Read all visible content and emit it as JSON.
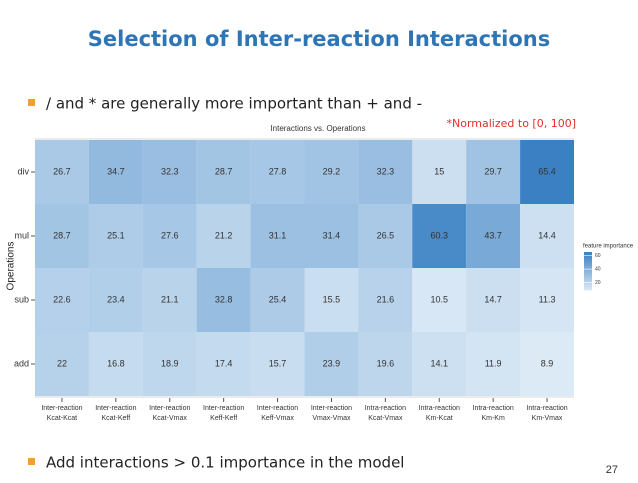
{
  "slide": {
    "title": "Selection of Inter-reaction Interactions",
    "bullets": [
      "/ and *  are generally more important than + and -",
      "Add interactions > 0.1 importance in the model"
    ],
    "note": "*Normalized to [0, 100]",
    "page_number": "27"
  },
  "chart_data": {
    "type": "heatmap",
    "title": "Interactions vs. Operations",
    "y_label": "Operations",
    "rows": [
      "div",
      "mul",
      "sub",
      "add"
    ],
    "categories": [
      [
        "Inter-reaction",
        "Kcat-Kcat"
      ],
      [
        "Inter-reaction",
        "Kcat-Keff"
      ],
      [
        "Inter-reaction",
        "Kcat-Vmax"
      ],
      [
        "Inter-reaction",
        "Keff-Keff"
      ],
      [
        "Inter-reaction",
        "Keff-Vmax"
      ],
      [
        "Inter-reaction",
        "Vmax-Vmax"
      ],
      [
        "Intra-reaction",
        "Kcat-Vmax"
      ],
      [
        "Intra-reaction",
        "Km-Kcat"
      ],
      [
        "Intra-reaction",
        "Km-Km"
      ],
      [
        "Intra-reaction",
        "Km-Vmax"
      ]
    ],
    "values": [
      [
        26.7,
        34.7,
        32.3,
        28.7,
        27.8,
        29.2,
        32.3,
        15,
        29.7,
        65.4
      ],
      [
        28.7,
        25.1,
        27.6,
        21.2,
        31.1,
        31.4,
        26.5,
        60.3,
        43.7,
        14.4
      ],
      [
        22.6,
        23.4,
        21.1,
        32.8,
        25.4,
        15.5,
        21.6,
        10.5,
        14.7,
        11.3
      ],
      [
        22,
        16.8,
        18.9,
        17.4,
        15.7,
        23.9,
        19.6,
        14.1,
        11.9,
        8.9
      ]
    ],
    "colorbar_title": "feature importance",
    "colorlim": [
      8.9,
      65.4
    ],
    "colorbar_ticks": [
      20,
      40,
      60
    ],
    "colors": [
      "#dceaf6",
      "#3a80c3"
    ]
  }
}
